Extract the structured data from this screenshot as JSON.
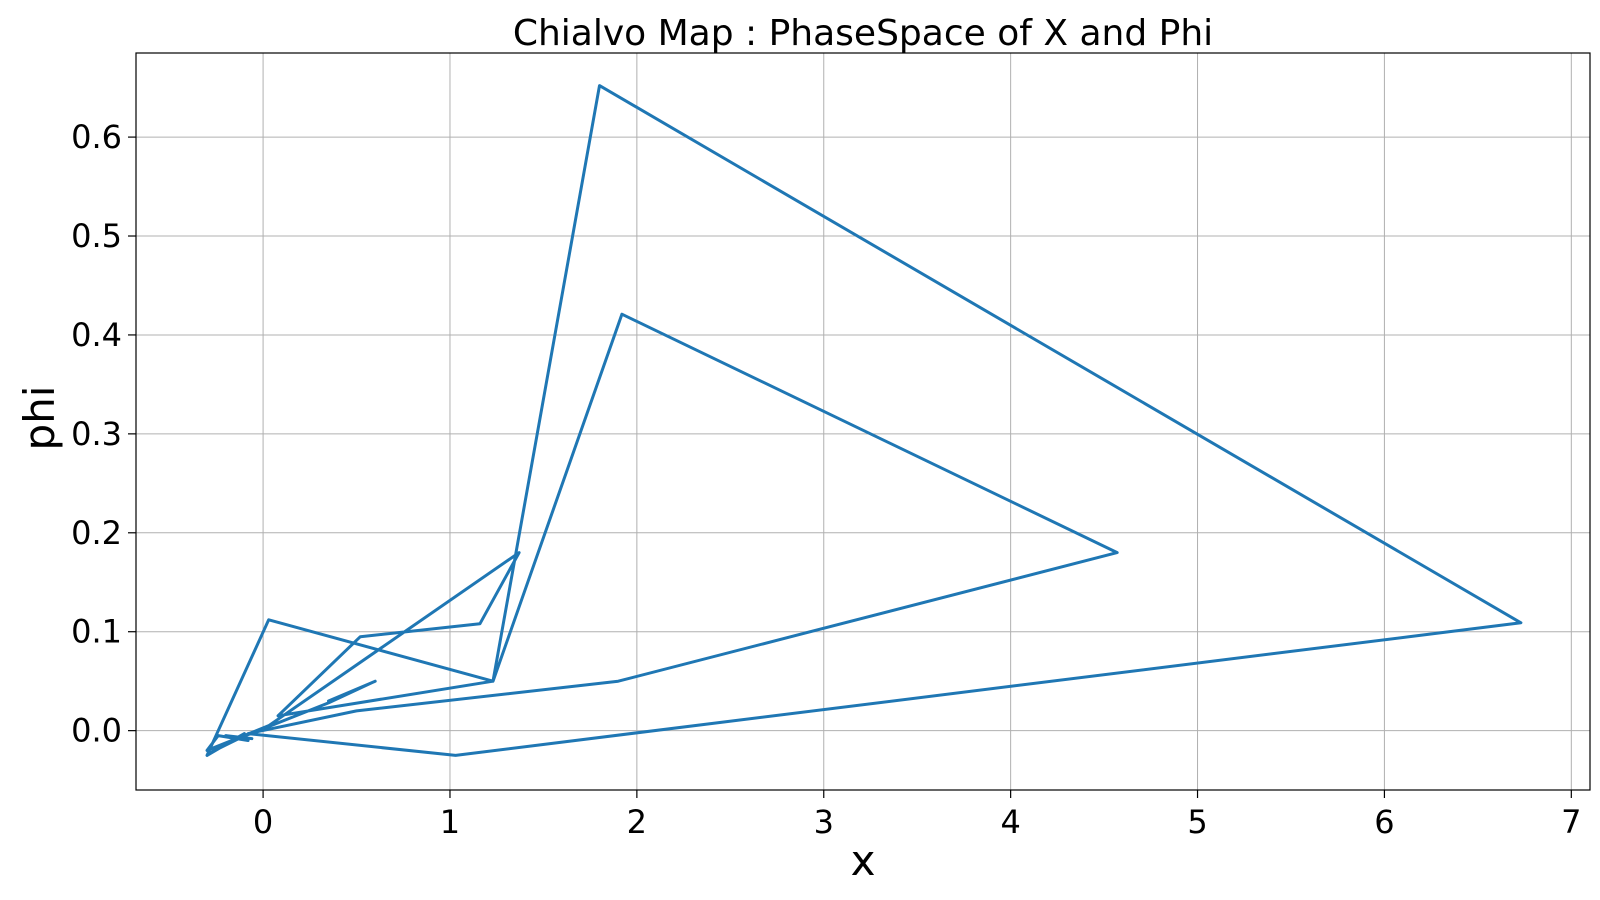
{
  "chart_data": {
    "type": "line",
    "title": "Chialvo Map : PhaseSpace of X and Phi",
    "xlabel": "x",
    "ylabel": "phi",
    "xlim": [
      -0.68,
      7.1
    ],
    "ylim": [
      -0.06,
      0.685
    ],
    "x_ticks": [
      0,
      1,
      2,
      3,
      4,
      5,
      6,
      7
    ],
    "x_tick_labels": [
      "0",
      "1",
      "2",
      "3",
      "4",
      "5",
      "6",
      "7"
    ],
    "y_ticks": [
      0.0,
      0.1,
      0.2,
      0.3,
      0.4,
      0.5,
      0.6
    ],
    "y_tick_labels": [
      "0.0",
      "0.1",
      "0.2",
      "0.3",
      "0.4",
      "0.5",
      "0.6"
    ],
    "grid": true,
    "line_color": "#1f77b4",
    "series": [
      {
        "x": [
          0.6,
          0.35,
          0.6,
          0.35,
          -0.12,
          -0.28,
          -0.1,
          -0.3,
          0.03,
          1.23,
          1.8,
          6.73,
          1.03,
          -0.08,
          0.5,
          1.9,
          4.57,
          1.92,
          1.23,
          0.08,
          0.52,
          1.16,
          1.37,
          0.03,
          -0.3,
          -0.24,
          -0.08,
          -0.2,
          -0.06
        ],
        "y": [
          0.05,
          0.03,
          0.05,
          0.028,
          -0.007,
          -0.022,
          -0.003,
          -0.025,
          0.112,
          0.05,
          0.652,
          0.109,
          -0.025,
          -0.003,
          0.02,
          0.05,
          0.18,
          0.421,
          0.05,
          0.015,
          0.095,
          0.108,
          0.18,
          0.005,
          -0.02,
          -0.005,
          -0.01,
          -0.005,
          -0.008
        ]
      }
    ]
  }
}
